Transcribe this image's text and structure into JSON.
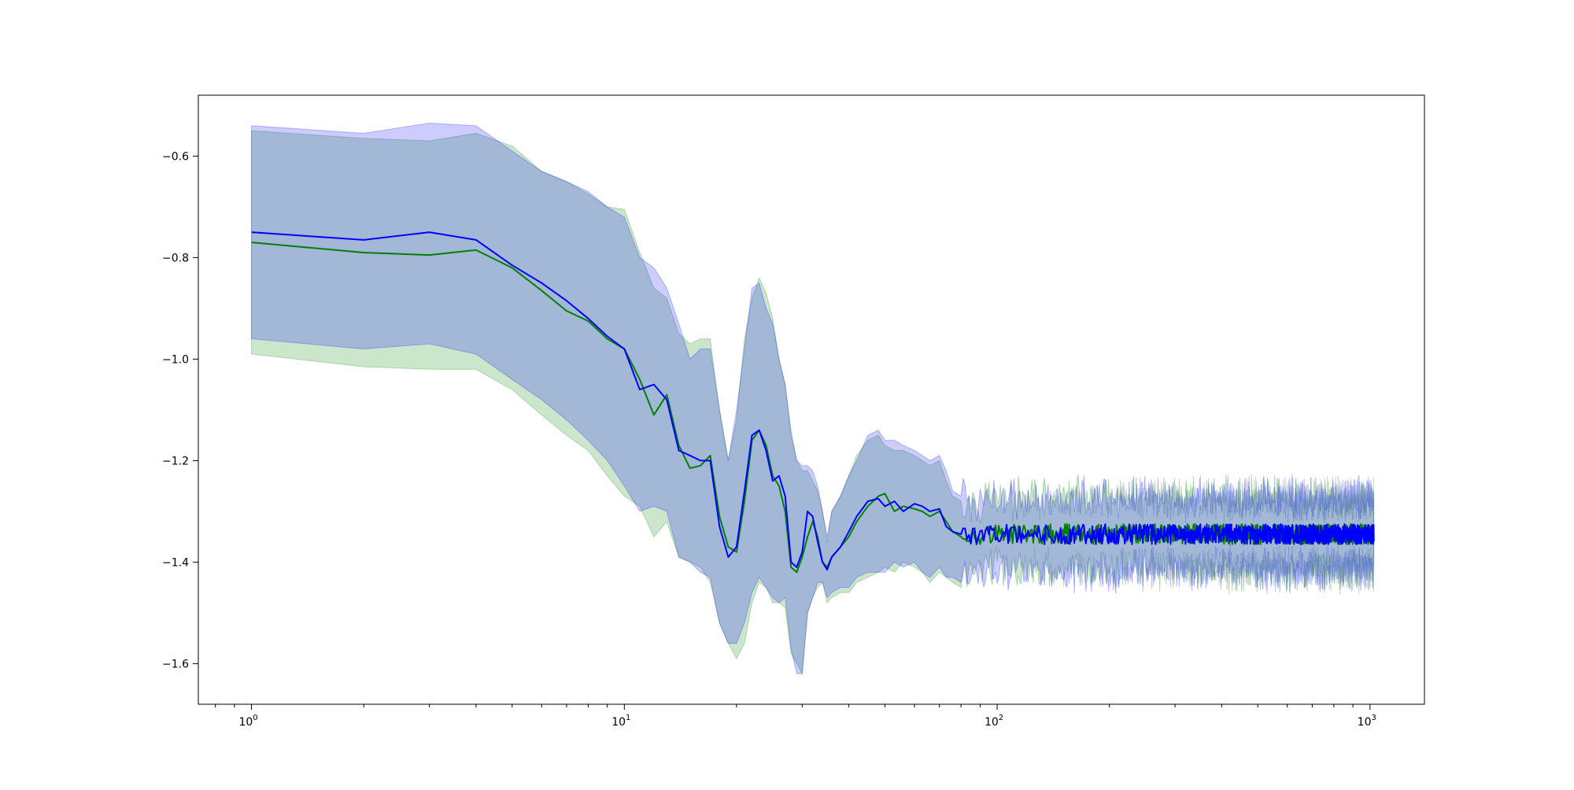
{
  "chart_data": {
    "type": "line",
    "title": "",
    "xlabel": "",
    "ylabel": "",
    "xscale": "log",
    "xlim": [
      0.72,
      1400
    ],
    "ylim": [
      -1.68,
      -0.48
    ],
    "grid": false,
    "legend": "none",
    "x_ticks": [
      {
        "value": 1,
        "base": "10",
        "exp": "0"
      },
      {
        "value": 10,
        "base": "10",
        "exp": "1"
      },
      {
        "value": 100,
        "base": "10",
        "exp": "2"
      },
      {
        "value": 1000,
        "base": "10",
        "exp": "3"
      }
    ],
    "y_ticks": [
      {
        "value": -0.6,
        "label": "−0.6"
      },
      {
        "value": -0.8,
        "label": "−0.8"
      },
      {
        "value": -1.0,
        "label": "−1.0"
      },
      {
        "value": -1.2,
        "label": "−1.2"
      },
      {
        "value": -1.4,
        "label": "−1.4"
      },
      {
        "value": -1.6,
        "label": "−1.6"
      }
    ],
    "series": [
      {
        "color": "#008000",
        "band_color": "#008000",
        "band_opacity": 0.2,
        "x": [
          1,
          2,
          3,
          4,
          5,
          6,
          7,
          8,
          9,
          10,
          11,
          12,
          13,
          14,
          15,
          16,
          17,
          18,
          19,
          20,
          21,
          22,
          23,
          24,
          25,
          26,
          27,
          28,
          29,
          30,
          31,
          32,
          33,
          34,
          35,
          36,
          38,
          40,
          42,
          45,
          48,
          50,
          53,
          56,
          60,
          63,
          66,
          70,
          73,
          76,
          80
        ],
        "y": [
          -0.77,
          -0.79,
          -0.795,
          -0.785,
          -0.82,
          -0.865,
          -0.905,
          -0.925,
          -0.96,
          -0.98,
          -1.04,
          -1.11,
          -1.07,
          -1.17,
          -1.215,
          -1.21,
          -1.19,
          -1.31,
          -1.37,
          -1.38,
          -1.28,
          -1.16,
          -1.14,
          -1.17,
          -1.23,
          -1.25,
          -1.3,
          -1.41,
          -1.42,
          -1.39,
          -1.35,
          -1.32,
          -1.35,
          -1.4,
          -1.41,
          -1.39,
          -1.37,
          -1.35,
          -1.32,
          -1.29,
          -1.27,
          -1.265,
          -1.3,
          -1.29,
          -1.295,
          -1.3,
          -1.31,
          -1.3,
          -1.32,
          -1.34,
          -1.35
        ],
        "upper": [
          -0.55,
          -0.565,
          -0.57,
          -0.555,
          -0.58,
          -0.63,
          -0.65,
          -0.675,
          -0.7,
          -0.705,
          -0.79,
          -0.86,
          -0.88,
          -0.95,
          -0.97,
          -0.96,
          -0.96,
          -1.1,
          -1.2,
          -1.12,
          -0.96,
          -0.88,
          -0.84,
          -0.87,
          -0.92,
          -1.0,
          -1.05,
          -1.14,
          -1.2,
          -1.22,
          -1.22,
          -1.24,
          -1.26,
          -1.3,
          -1.36,
          -1.3,
          -1.27,
          -1.23,
          -1.19,
          -1.16,
          -1.15,
          -1.17,
          -1.18,
          -1.18,
          -1.19,
          -1.2,
          -1.21,
          -1.2,
          -1.24,
          -1.27,
          -1.28
        ],
        "lower": [
          -0.99,
          -1.015,
          -1.02,
          -1.02,
          -1.06,
          -1.11,
          -1.15,
          -1.18,
          -1.23,
          -1.27,
          -1.29,
          -1.35,
          -1.32,
          -1.39,
          -1.4,
          -1.41,
          -1.44,
          -1.52,
          -1.56,
          -1.59,
          -1.56,
          -1.48,
          -1.44,
          -1.45,
          -1.48,
          -1.48,
          -1.49,
          -1.58,
          -1.6,
          -1.62,
          -1.5,
          -1.47,
          -1.45,
          -1.44,
          -1.48,
          -1.47,
          -1.46,
          -1.46,
          -1.44,
          -1.43,
          -1.42,
          -1.41,
          -1.42,
          -1.4,
          -1.41,
          -1.42,
          -1.44,
          -1.42,
          -1.43,
          -1.44,
          -1.45
        ]
      },
      {
        "color": "#0000ff",
        "band_color": "#0000ff",
        "band_opacity": 0.2,
        "x": [
          1,
          2,
          3,
          4,
          5,
          6,
          7,
          8,
          9,
          10,
          11,
          12,
          13,
          14,
          15,
          16,
          17,
          18,
          19,
          20,
          21,
          22,
          23,
          24,
          25,
          26,
          27,
          28,
          29,
          30,
          31,
          32,
          33,
          34,
          35,
          36,
          38,
          40,
          42,
          45,
          48,
          50,
          53,
          56,
          60,
          63,
          66,
          70,
          73,
          76,
          80
        ],
        "y": [
          -0.75,
          -0.765,
          -0.75,
          -0.765,
          -0.815,
          -0.85,
          -0.885,
          -0.92,
          -0.955,
          -0.98,
          -1.06,
          -1.05,
          -1.08,
          -1.18,
          -1.19,
          -1.2,
          -1.2,
          -1.33,
          -1.39,
          -1.37,
          -1.26,
          -1.15,
          -1.14,
          -1.18,
          -1.24,
          -1.23,
          -1.27,
          -1.4,
          -1.41,
          -1.38,
          -1.3,
          -1.31,
          -1.36,
          -1.4,
          -1.415,
          -1.39,
          -1.37,
          -1.34,
          -1.31,
          -1.28,
          -1.275,
          -1.29,
          -1.28,
          -1.3,
          -1.285,
          -1.29,
          -1.3,
          -1.295,
          -1.33,
          -1.34,
          -1.345
        ],
        "upper": [
          -0.54,
          -0.555,
          -0.535,
          -0.54,
          -0.59,
          -0.63,
          -0.65,
          -0.67,
          -0.7,
          -0.72,
          -0.8,
          -0.82,
          -0.86,
          -0.93,
          -1.0,
          -0.98,
          -0.98,
          -1.1,
          -1.2,
          -1.1,
          -0.98,
          -0.86,
          -0.85,
          -0.9,
          -0.93,
          -1.0,
          -1.05,
          -1.15,
          -1.2,
          -1.21,
          -1.21,
          -1.22,
          -1.25,
          -1.3,
          -1.35,
          -1.3,
          -1.27,
          -1.23,
          -1.2,
          -1.15,
          -1.14,
          -1.16,
          -1.16,
          -1.17,
          -1.18,
          -1.19,
          -1.2,
          -1.19,
          -1.22,
          -1.26,
          -1.27
        ],
        "lower": [
          -0.96,
          -0.98,
          -0.97,
          -0.99,
          -1.04,
          -1.08,
          -1.12,
          -1.16,
          -1.2,
          -1.25,
          -1.3,
          -1.29,
          -1.3,
          -1.39,
          -1.4,
          -1.42,
          -1.43,
          -1.52,
          -1.56,
          -1.56,
          -1.52,
          -1.46,
          -1.43,
          -1.45,
          -1.47,
          -1.48,
          -1.47,
          -1.57,
          -1.62,
          -1.62,
          -1.5,
          -1.47,
          -1.44,
          -1.44,
          -1.47,
          -1.46,
          -1.45,
          -1.45,
          -1.43,
          -1.42,
          -1.42,
          -1.42,
          -1.4,
          -1.41,
          -1.4,
          -1.42,
          -1.43,
          -1.41,
          -1.43,
          -1.43,
          -1.44
        ]
      }
    ],
    "tail": {
      "x_start": 81,
      "x_end": 1024,
      "mean": -1.345,
      "line_noise": 0.02,
      "band_halfwidth": 0.07,
      "band_noise": 0.03
    }
  }
}
